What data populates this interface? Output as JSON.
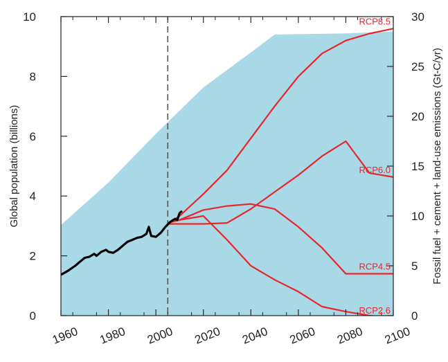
{
  "chart_data": {
    "type": "line",
    "xlim": [
      1960,
      2100
    ],
    "x_ticks": [
      1960,
      1980,
      2000,
      2020,
      2040,
      2060,
      2080,
      2100
    ],
    "left_axis": {
      "label": "Global population (billions)",
      "lim": [
        0,
        10
      ],
      "ticks": [
        0,
        2,
        4,
        6,
        8,
        10
      ]
    },
    "right_axis": {
      "label": "Fossil fuel + cement + land-use emissions (Gt-C/yr)",
      "lim": [
        0,
        30
      ],
      "ticks": [
        0,
        5,
        10,
        15,
        20,
        25,
        30
      ]
    },
    "vertical_marker_x": 2005,
    "grid": false,
    "population_area": {
      "axis": "left",
      "color": "#a9d8e6",
      "points": [
        [
          1960,
          3.03
        ],
        [
          1980,
          4.45
        ],
        [
          2000,
          6.08
        ],
        [
          2020,
          7.63
        ],
        [
          2040,
          8.8
        ],
        [
          2050,
          9.4
        ],
        [
          2080,
          9.44
        ],
        [
          2100,
          9.5
        ]
      ]
    },
    "historical_emissions": {
      "axis": "right",
      "color": "#000000",
      "points": [
        [
          1960,
          4.1
        ],
        [
          1963,
          4.5
        ],
        [
          1966,
          5.0
        ],
        [
          1968,
          5.4
        ],
        [
          1970,
          5.8
        ],
        [
          1972,
          5.9
        ],
        [
          1974,
          6.2
        ],
        [
          1975,
          6.0
        ],
        [
          1977,
          6.4
        ],
        [
          1979,
          6.6
        ],
        [
          1980,
          6.4
        ],
        [
          1982,
          6.3
        ],
        [
          1984,
          6.6
        ],
        [
          1986,
          7.0
        ],
        [
          1988,
          7.4
        ],
        [
          1990,
          7.6
        ],
        [
          1992,
          7.8
        ],
        [
          1994,
          7.9
        ],
        [
          1996,
          8.2
        ],
        [
          1997,
          8.9
        ],
        [
          1998,
          8.0
        ],
        [
          2000,
          7.9
        ],
        [
          2002,
          8.3
        ],
        [
          2004,
          8.9
        ],
        [
          2006,
          9.4
        ],
        [
          2008,
          9.7
        ],
        [
          2009,
          9.6
        ],
        [
          2010,
          10.3
        ],
        [
          2011,
          10.5
        ]
      ]
    },
    "series": [
      {
        "name": "RCP8.5",
        "color": "#e8262a",
        "points": [
          [
            2005,
            9.2
          ],
          [
            2010,
            10.0
          ],
          [
            2020,
            12.2
          ],
          [
            2030,
            14.6
          ],
          [
            2040,
            17.8
          ],
          [
            2050,
            21.0
          ],
          [
            2060,
            24.0
          ],
          [
            2070,
            26.3
          ],
          [
            2080,
            27.6
          ],
          [
            2090,
            28.3
          ],
          [
            2100,
            28.8
          ]
        ]
      },
      {
        "name": "RCP6.0",
        "color": "#e8262a",
        "points": [
          [
            2005,
            9.2
          ],
          [
            2010,
            9.2
          ],
          [
            2020,
            9.2
          ],
          [
            2030,
            9.3
          ],
          [
            2040,
            10.7
          ],
          [
            2050,
            12.4
          ],
          [
            2060,
            14.1
          ],
          [
            2070,
            16.0
          ],
          [
            2080,
            17.5
          ],
          [
            2090,
            14.3
          ],
          [
            2100,
            13.9
          ]
        ]
      },
      {
        "name": "RCP4.5",
        "color": "#e8262a",
        "points": [
          [
            2005,
            9.3
          ],
          [
            2010,
            9.6
          ],
          [
            2020,
            10.6
          ],
          [
            2030,
            11.0
          ],
          [
            2040,
            11.2
          ],
          [
            2050,
            10.7
          ],
          [
            2060,
            8.9
          ],
          [
            2070,
            6.8
          ],
          [
            2080,
            4.2
          ],
          [
            2090,
            4.2
          ],
          [
            2100,
            4.2
          ]
        ]
      },
      {
        "name": "RCP2.6",
        "color": "#e8262a",
        "points": [
          [
            2005,
            9.3
          ],
          [
            2010,
            9.6
          ],
          [
            2020,
            10.0
          ],
          [
            2030,
            7.6
          ],
          [
            2040,
            5.0
          ],
          [
            2050,
            3.6
          ],
          [
            2060,
            2.4
          ],
          [
            2070,
            0.9
          ],
          [
            2080,
            0.4
          ],
          [
            2090,
            0.0
          ],
          [
            2100,
            -0.2
          ]
        ]
      }
    ]
  }
}
